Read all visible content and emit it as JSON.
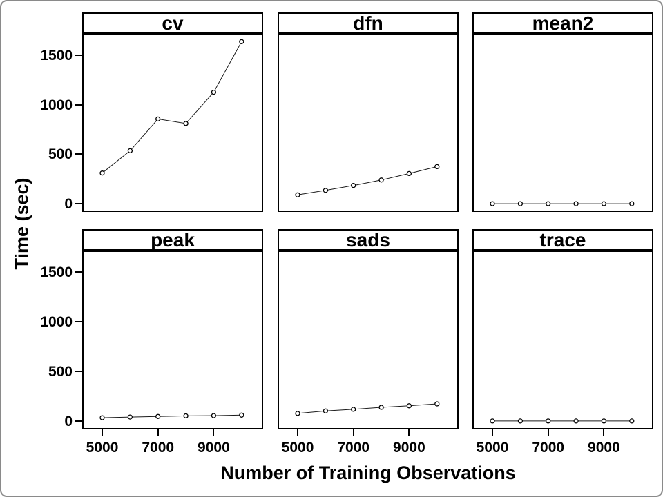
{
  "figure": {
    "background": "#ffffff",
    "frame_color": "#8a8a8a",
    "panel_border_color": "#000000",
    "text_color": "#000000"
  },
  "chart_data": {
    "type": "line",
    "layout": "trellis 2 rows x 3 columns",
    "xlabel": "Number of Training Observations",
    "ylabel": "Time (sec)",
    "x": [
      5000,
      6000,
      7000,
      8000,
      9000,
      10000
    ],
    "xticks": [
      5000,
      7000,
      9000
    ],
    "yticks": [
      0,
      500,
      1000,
      1500
    ],
    "xlim": [
      4330,
      10725
    ],
    "ylim": [
      -68,
      1700
    ],
    "grid": false,
    "legend": "none",
    "marker": "open-circle",
    "line_color": "#1a1a1a",
    "panels": [
      {
        "label": "cv",
        "values": [
          310,
          535,
          855,
          810,
          1125,
          1635
        ]
      },
      {
        "label": "dfn",
        "values": [
          90,
          135,
          185,
          240,
          305,
          375
        ]
      },
      {
        "label": "mean2",
        "values": [
          1,
          1,
          1,
          1,
          1,
          1
        ]
      },
      {
        "label": "peak",
        "values": [
          35,
          42,
          48,
          54,
          56,
          62
        ]
      },
      {
        "label": "sads",
        "values": [
          78,
          103,
          120,
          140,
          155,
          175
        ]
      },
      {
        "label": "trace",
        "values": [
          2,
          2,
          2,
          2,
          2,
          2
        ]
      }
    ]
  }
}
